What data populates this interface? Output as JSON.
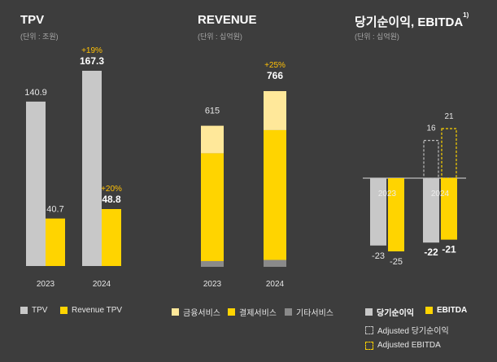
{
  "colors": {
    "background": "#3d3d3d",
    "gray": "#c8c8c8",
    "yellow": "#ffd400",
    "light_yellow": "#ffe89a",
    "dark_gray": "#8a8a8a",
    "growth": "#ffc107",
    "muted_text": "#a8a8a8"
  },
  "chart_data": [
    {
      "type": "bar",
      "title": "TPV",
      "unit_note": "(단위 : 조원)",
      "categories": [
        "2023",
        "2024"
      ],
      "series": [
        {
          "name": "TPV",
          "values": [
            140.9,
            167.3
          ],
          "labels": [
            "140.9",
            "167.3"
          ]
        },
        {
          "name": "Revenue TPV",
          "values": [
            40.7,
            48.8
          ],
          "labels": [
            "40.7",
            "48.8"
          ]
        }
      ],
      "growth": {
        "TPV": "+19%",
        "Revenue TPV": "+20%"
      },
      "legend": [
        "TPV",
        "Revenue TPV"
      ],
      "ylim": [
        0,
        190
      ]
    },
    {
      "type": "stacked_bar",
      "title": "REVENUE",
      "unit_note": "(단위 : 십억원)",
      "categories": [
        "2023",
        "2024"
      ],
      "totals": [
        615,
        766
      ],
      "total_labels": [
        "615",
        "766"
      ],
      "series": [
        {
          "name": "기타서비스",
          "values": [
            25,
            30
          ]
        },
        {
          "name": "결제서비스",
          "values": [
            470,
            566
          ]
        },
        {
          "name": "금융서비스",
          "values": [
            120,
            170
          ]
        }
      ],
      "growth": "+25%",
      "legend": [
        "금융서비스",
        "결제서비스",
        "기타서비스"
      ],
      "ylim": [
        0,
        900
      ]
    },
    {
      "type": "bar",
      "title": "당기순이익, EBITDA",
      "title_sup": "1)",
      "unit_note": "(단위 : 십억원)",
      "categories": [
        "2023",
        "2024"
      ],
      "series": [
        {
          "name": "당기순이익",
          "values": [
            -23,
            -22
          ],
          "labels": [
            "-23",
            "-22"
          ]
        },
        {
          "name": "EBITDA",
          "values": [
            -25,
            -21
          ],
          "labels": [
            "-25",
            "-21"
          ]
        },
        {
          "name": "Adjusted 당기순이익",
          "values": [
            null,
            16
          ],
          "labels": [
            "",
            "16"
          ]
        },
        {
          "name": "Adjusted EBITDA",
          "values": [
            null,
            21
          ],
          "labels": [
            "",
            "21"
          ]
        }
      ],
      "legend": [
        "당기순이익",
        "EBITDA",
        "Adjusted 당기순이익",
        "Adjusted EBITDA"
      ],
      "ylim": [
        -30,
        30
      ]
    }
  ]
}
